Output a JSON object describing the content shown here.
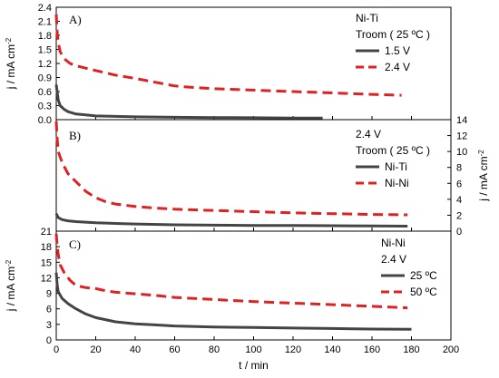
{
  "chart_data": [
    {
      "type": "line",
      "panel_label": "A)",
      "xlim": [
        0,
        200
      ],
      "ylim": [
        0,
        2.4
      ],
      "yticks": [
        "0.0",
        "0.3",
        "0.6",
        "0.9",
        "1.2",
        "1.5",
        "1.8",
        "2.1",
        "2.4"
      ],
      "ylabel": "j / mA cm",
      "ylabel_sup": "-2",
      "legend_lines": [
        "Ni-Ti",
        "Troom ( 25 ºC )"
      ],
      "series": [
        {
          "name": "1.5 V",
          "color": "#444444",
          "dash": "solid",
          "points": [
            [
              0,
              0.75
            ],
            [
              1,
              0.42
            ],
            [
              2,
              0.3
            ],
            [
              4,
              0.22
            ],
            [
              6,
              0.17
            ],
            [
              10,
              0.12
            ],
            [
              15,
              0.1
            ],
            [
              20,
              0.08
            ],
            [
              40,
              0.06
            ],
            [
              60,
              0.05
            ],
            [
              80,
              0.045
            ],
            [
              100,
              0.04
            ],
            [
              120,
              0.035
            ],
            [
              135,
              0.035
            ]
          ]
        },
        {
          "name": "2.4 V",
          "color": "#dd2222",
          "dash": "dashed",
          "points": [
            [
              0,
              2.25
            ],
            [
              0.5,
              1.85
            ],
            [
              1,
              1.65
            ],
            [
              2,
              1.45
            ],
            [
              4,
              1.3
            ],
            [
              7,
              1.2
            ],
            [
              10,
              1.15
            ],
            [
              20,
              1.05
            ],
            [
              30,
              0.95
            ],
            [
              40,
              0.88
            ],
            [
              50,
              0.8
            ],
            [
              60,
              0.72
            ],
            [
              65,
              0.7
            ],
            [
              80,
              0.66
            ],
            [
              100,
              0.63
            ],
            [
              120,
              0.6
            ],
            [
              140,
              0.57
            ],
            [
              160,
              0.54
            ],
            [
              175,
              0.52
            ]
          ]
        }
      ]
    },
    {
      "type": "line",
      "panel_label": "B)",
      "xlim": [
        0,
        200
      ],
      "ylim": [
        0,
        14
      ],
      "yticks": [
        "0",
        "2",
        "4",
        "6",
        "8",
        "10",
        "12",
        "14"
      ],
      "ylabel": "j / mA cm",
      "ylabel_sup": "-2",
      "legend_lines": [
        "2.4 V",
        "Troom ( 25 ºC )"
      ],
      "series": [
        {
          "name": "Ni-Ti",
          "color": "#444444",
          "dash": "solid",
          "points": [
            [
              0,
              2.2
            ],
            [
              1,
              1.7
            ],
            [
              3,
              1.45
            ],
            [
              6,
              1.3
            ],
            [
              10,
              1.2
            ],
            [
              20,
              1.05
            ],
            [
              40,
              0.9
            ],
            [
              60,
              0.8
            ],
            [
              80,
              0.75
            ],
            [
              100,
              0.72
            ],
            [
              120,
              0.7
            ],
            [
              140,
              0.68
            ],
            [
              160,
              0.65
            ],
            [
              178,
              0.63
            ]
          ]
        },
        {
          "name": "Ni-Ni",
          "color": "#dd2222",
          "dash": "dashed",
          "points": [
            [
              0,
              13.8
            ],
            [
              0.5,
              11.5
            ],
            [
              1,
              10
            ],
            [
              3,
              8.6
            ],
            [
              6,
              7.2
            ],
            [
              10,
              6.2
            ],
            [
              15,
              5
            ],
            [
              20,
              4.2
            ],
            [
              25,
              3.7
            ],
            [
              30,
              3.4
            ],
            [
              40,
              3.1
            ],
            [
              50,
              2.9
            ],
            [
              60,
              2.75
            ],
            [
              80,
              2.6
            ],
            [
              100,
              2.45
            ],
            [
              120,
              2.3
            ],
            [
              140,
              2.2
            ],
            [
              160,
              2.1
            ],
            [
              178,
              2.05
            ]
          ]
        }
      ]
    },
    {
      "type": "line",
      "panel_label": "C)",
      "xlim": [
        0,
        200
      ],
      "ylim": [
        0,
        21
      ],
      "yticks": [
        "0",
        "3",
        "6",
        "9",
        "12",
        "15",
        "18",
        "21"
      ],
      "xticks": [
        "0",
        "20",
        "40",
        "60",
        "80",
        "100",
        "120",
        "140",
        "160",
        "180",
        "200"
      ],
      "xlabel": "t / min",
      "ylabel": "j / mA cm",
      "ylabel_sup": "-2",
      "legend_lines": [
        "Ni-Ni",
        "2.4 V"
      ],
      "series": [
        {
          "name": "25 ºC",
          "color": "#444444",
          "dash": "solid",
          "points": [
            [
              0,
              13
            ],
            [
              0.5,
              10.5
            ],
            [
              1,
              9.3
            ],
            [
              3,
              8
            ],
            [
              6,
              7
            ],
            [
              10,
              6
            ],
            [
              15,
              5
            ],
            [
              20,
              4.3
            ],
            [
              30,
              3.5
            ],
            [
              40,
              3.1
            ],
            [
              50,
              2.9
            ],
            [
              60,
              2.7
            ],
            [
              80,
              2.5
            ],
            [
              100,
              2.4
            ],
            [
              120,
              2.3
            ],
            [
              140,
              2.2
            ],
            [
              160,
              2.1
            ],
            [
              180,
              2.05
            ]
          ]
        },
        {
          "name": "50 ºC",
          "color": "#dd2222",
          "dash": "dashed",
          "points": [
            [
              0,
              20.5
            ],
            [
              0.5,
              18
            ],
            [
              1,
              16.5
            ],
            [
              2,
              14.5
            ],
            [
              4,
              13
            ],
            [
              7,
              11.5
            ],
            [
              10,
              10.5
            ],
            [
              15,
              10.1
            ],
            [
              20,
              9.9
            ],
            [
              25,
              9.5
            ],
            [
              30,
              9.2
            ],
            [
              40,
              8.9
            ],
            [
              50,
              8.6
            ],
            [
              60,
              8.2
            ],
            [
              80,
              7.8
            ],
            [
              100,
              7.4
            ],
            [
              120,
              7.1
            ],
            [
              140,
              6.8
            ],
            [
              160,
              6.5
            ],
            [
              178,
              6.2
            ]
          ]
        }
      ]
    }
  ]
}
